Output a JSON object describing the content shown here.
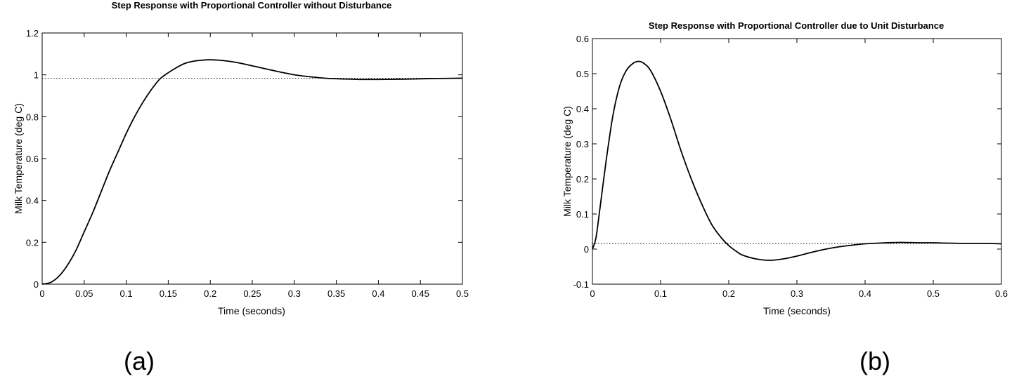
{
  "chart_data": [
    {
      "type": "line",
      "panel_label": "(a)",
      "title": "Step Response with Proportional Controller without Disturbance",
      "xlabel": "Time (seconds)",
      "ylabel": "Milk Temperature (deg C)",
      "xlim": [
        0,
        0.5
      ],
      "ylim": [
        0,
        1.2
      ],
      "xticks": [
        0,
        0.05,
        0.1,
        0.15,
        0.2,
        0.25,
        0.3,
        0.35,
        0.4,
        0.45,
        0.5
      ],
      "xtick_labels": [
        "0",
        "0.05",
        "0.1",
        "0.15",
        "0.2",
        "0.25",
        "0.3",
        "0.35",
        "0.4",
        "0.45",
        "0.5"
      ],
      "yticks": [
        0,
        0.2,
        0.4,
        0.6,
        0.8,
        1,
        1.2
      ],
      "ytick_labels": [
        "0",
        "0.2",
        "0.4",
        "0.6",
        "0.8",
        "1",
        "1.2"
      ],
      "grid": false,
      "reference_line": {
        "y": 0.984,
        "style": "dotted"
      },
      "series": [
        {
          "x": [
            0,
            0.01,
            0.02,
            0.03,
            0.04,
            0.05,
            0.06,
            0.07,
            0.08,
            0.09,
            0.1,
            0.11,
            0.12,
            0.13,
            0.14,
            0.15,
            0.16,
            0.17,
            0.18,
            0.19,
            0.2,
            0.21,
            0.22,
            0.23,
            0.24,
            0.25,
            0.26,
            0.27,
            0.28,
            0.29,
            0.3,
            0.32,
            0.34,
            0.36,
            0.38,
            0.4,
            0.42,
            0.44,
            0.46,
            0.48,
            0.5
          ],
          "y": [
            0,
            0.008,
            0.038,
            0.09,
            0.16,
            0.25,
            0.34,
            0.44,
            0.54,
            0.63,
            0.72,
            0.8,
            0.87,
            0.93,
            0.98,
            1.01,
            1.035,
            1.055,
            1.065,
            1.07,
            1.072,
            1.07,
            1.066,
            1.06,
            1.052,
            1.043,
            1.034,
            1.025,
            1.016,
            1.008,
            1.0,
            0.99,
            0.983,
            0.98,
            0.978,
            0.978,
            0.979,
            0.98,
            0.982,
            0.983,
            0.984
          ]
        }
      ]
    },
    {
      "type": "line",
      "panel_label": "(b)",
      "title": "Step Response with Proportional Controller due to Unit Disturbance",
      "xlabel": "Time (seconds)",
      "ylabel": "Milk Temperature (deg C)",
      "xlim": [
        0,
        0.6
      ],
      "ylim": [
        -0.1,
        0.6
      ],
      "xticks": [
        0,
        0.1,
        0.2,
        0.3,
        0.4,
        0.5,
        0.6
      ],
      "xtick_labels": [
        "0",
        "0.1",
        "0.2",
        "0.3",
        "0.4",
        "0.5",
        "0.6"
      ],
      "yticks": [
        -0.1,
        0,
        0.1,
        0.2,
        0.3,
        0.4,
        0.5,
        0.6
      ],
      "ytick_labels": [
        "-0.1",
        "0",
        "0.1",
        "0.2",
        "0.3",
        "0.4",
        "0.5",
        "0.6"
      ],
      "grid": false,
      "reference_line": {
        "y": 0.016,
        "style": "dotted"
      },
      "series": [
        {
          "x": [
            0,
            0.005,
            0.01,
            0.02,
            0.03,
            0.04,
            0.05,
            0.06,
            0.068,
            0.075,
            0.085,
            0.1,
            0.115,
            0.13,
            0.145,
            0.16,
            0.175,
            0.19,
            0.2,
            0.21,
            0.22,
            0.24,
            0.26,
            0.28,
            0.3,
            0.32,
            0.34,
            0.36,
            0.38,
            0.4,
            0.42,
            0.45,
            0.48,
            0.5,
            0.52,
            0.55,
            0.58,
            0.6
          ],
          "y": [
            0,
            0.03,
            0.1,
            0.25,
            0.38,
            0.465,
            0.51,
            0.53,
            0.535,
            0.53,
            0.51,
            0.45,
            0.37,
            0.28,
            0.2,
            0.13,
            0.07,
            0.03,
            0.01,
            -0.005,
            -0.017,
            -0.028,
            -0.032,
            -0.028,
            -0.02,
            -0.01,
            -0.001,
            0.006,
            0.011,
            0.015,
            0.017,
            0.019,
            0.018,
            0.018,
            0.017,
            0.016,
            0.016,
            0.015
          ]
        }
      ]
    }
  ]
}
